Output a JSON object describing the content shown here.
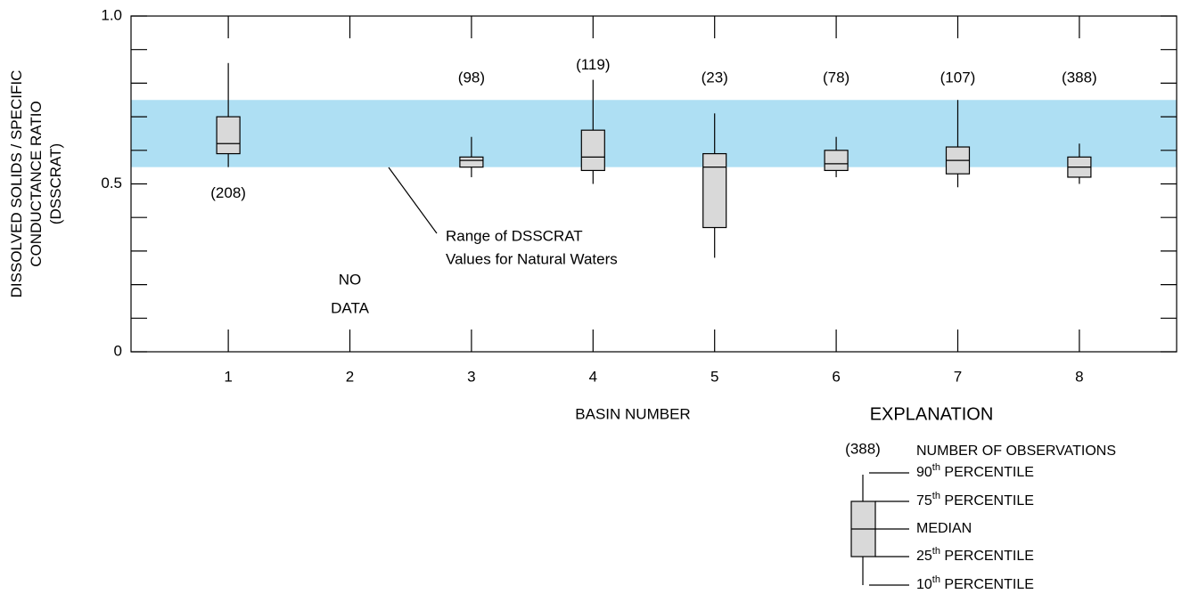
{
  "chart_data": {
    "type": "box",
    "ylabel": [
      "DISSOLVED SOLIDS / SPECIFIC",
      "CONDUCTANCE RATIO",
      "(DSSCRAT)"
    ],
    "xlabel": "BASIN NUMBER",
    "xlim": [
      0.2,
      8.8
    ],
    "xticks": [
      1,
      2,
      3,
      4,
      5,
      6,
      7,
      8
    ],
    "ylim": [
      0,
      1
    ],
    "yticks": [
      0,
      0.5,
      {
        "value": 1,
        "label": "1.0"
      }
    ],
    "minor_yticks": [
      0.1,
      0.2,
      0.3,
      0.4,
      0.6,
      0.7,
      0.8,
      0.9
    ],
    "band": {
      "range": [
        0.55,
        0.75
      ],
      "color": "#aedff3",
      "label": [
        "Range of DSSCRAT",
        "Values for Natural Waters"
      ]
    },
    "box_color": "#d9d9d9",
    "boxes": {
      "x": [
        1,
        3,
        4,
        5,
        6,
        7,
        8
      ],
      "whishi": [
        0.86,
        0.64,
        0.81,
        0.71,
        0.64,
        0.75,
        0.62
      ],
      "q3": [
        0.7,
        0.58,
        0.66,
        0.59,
        0.6,
        0.61,
        0.58
      ],
      "med": [
        0.62,
        0.57,
        0.58,
        0.55,
        0.56,
        0.57,
        0.55
      ],
      "q1": [
        0.59,
        0.55,
        0.54,
        0.37,
        0.54,
        0.53,
        0.52
      ],
      "whislo": [
        0.55,
        0.52,
        0.5,
        0.28,
        0.52,
        0.49,
        0.5
      ],
      "counts": [
        208,
        98,
        119,
        23,
        78,
        107,
        388
      ],
      "count_labels": [
        "(208)",
        "(98)",
        "(119)",
        "(23)",
        "(78)",
        "(107)",
        "(388)"
      ]
    },
    "no_data": {
      "x": 2,
      "label": [
        "NO",
        "DATA"
      ]
    },
    "legend": {
      "title": "EXPLANATION",
      "count_label": "(388)",
      "count_text": "NUMBER OF OBSERVATIONS",
      "entries": [
        {
          "number": "90",
          "suffix": "th",
          "text": " PERCENTILE"
        },
        {
          "number": "75",
          "suffix": "th",
          "text": " PERCENTILE"
        },
        {
          "text": "MEDIAN"
        },
        {
          "number": "25",
          "suffix": "th",
          "text": " PERCENTILE"
        },
        {
          "number": "10",
          "suffix": "th",
          "text": " PERCENTILE"
        }
      ]
    }
  }
}
